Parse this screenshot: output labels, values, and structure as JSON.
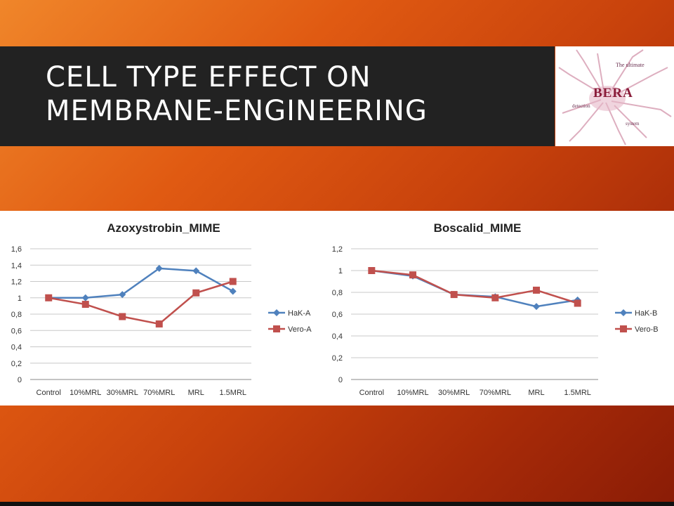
{
  "slide": {
    "title": "CELL TYPE EFFECT ON MEMBRANE-ENGINEERING",
    "logo": {
      "brand": "BERA",
      "tagline_1": "The ultimate",
      "tagline_2": "detection",
      "tagline_3": "system"
    }
  },
  "colors": {
    "series_a": "#4f81bd",
    "series_b": "#c0504d",
    "gridline": "#c8c8c8"
  },
  "chart_data": [
    {
      "type": "line",
      "title": "Azoxystrobin_MIME",
      "categories": [
        "Control",
        "10%MRL",
        "30%MRL",
        "70%MRL",
        "MRL",
        "1.5MRL"
      ],
      "yticks": [
        "0",
        "0,2",
        "0,4",
        "0,6",
        "0,8",
        "1",
        "1,2",
        "1,4",
        "1,6"
      ],
      "ylim": [
        0,
        1.6
      ],
      "grid": true,
      "legend": "right",
      "series": [
        {
          "name": "HaK-A",
          "values": [
            1.0,
            1.0,
            1.04,
            1.36,
            1.33,
            1.08
          ]
        },
        {
          "name": "Vero-A",
          "values": [
            1.0,
            0.92,
            0.77,
            0.68,
            1.06,
            1.2
          ]
        }
      ]
    },
    {
      "type": "line",
      "title": "Boscalid_MIME",
      "categories": [
        "Control",
        "10%MRL",
        "30%MRL",
        "70%MRL",
        "MRL",
        "1.5MRL"
      ],
      "yticks": [
        "0",
        "0,2",
        "0,4",
        "0,6",
        "0,8",
        "1",
        "1,2"
      ],
      "ylim": [
        0,
        1.2
      ],
      "grid": true,
      "legend": "right",
      "series": [
        {
          "name": "HaK-B",
          "values": [
            1.0,
            0.95,
            0.78,
            0.76,
            0.67,
            0.73
          ]
        },
        {
          "name": "Vero-B",
          "values": [
            1.0,
            0.96,
            0.78,
            0.75,
            0.82,
            0.7
          ]
        }
      ]
    }
  ]
}
